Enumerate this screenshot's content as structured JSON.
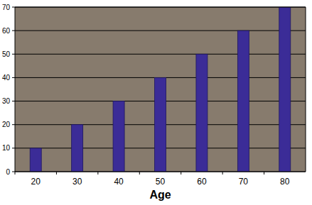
{
  "chart_data": {
    "type": "bar",
    "xlabel": "Age",
    "categories": [
      "20",
      "30",
      "40",
      "50",
      "60",
      "70",
      "80"
    ],
    "values": [
      10,
      20,
      30,
      40,
      50,
      60,
      70
    ],
    "color": "#3b2c97",
    "ylim": [
      0,
      70
    ],
    "yticks": [
      0,
      10,
      20,
      30,
      40,
      50,
      60,
      70
    ],
    "grid": true
  }
}
